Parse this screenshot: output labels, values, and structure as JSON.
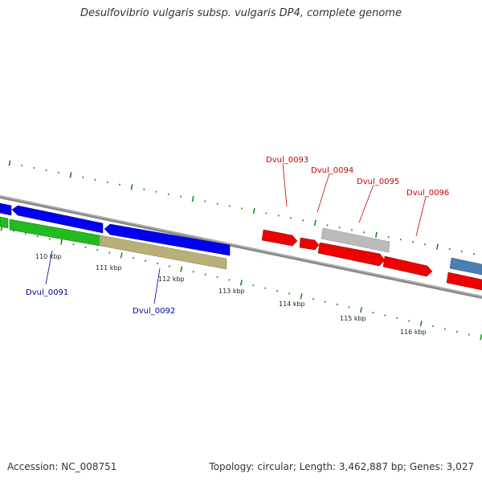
{
  "title": "Desulfovibrio vulgaris subsp. vulgaris DP4, complete genome",
  "footer": {
    "accession": "Accession: NC_008751",
    "topology": "Topology: circular; Length: 3,462,887 bp; Genes: 3,027"
  },
  "colors": {
    "backbone": "#888888",
    "tick": "#1e8a1e",
    "label_blue": "#0000aa",
    "label_red": "#cc0000",
    "gene_blue": "#0000ee",
    "gene_green": "#22bb22",
    "gene_olive": "#b8b078",
    "gene_red": "#ee0000",
    "gene_gray": "#bbbbbb",
    "gene_steel": "#4a7fb5"
  },
  "scale_ticks": [
    "110 kbp",
    "111 kbp",
    "112 kbp",
    "113 kbp",
    "114 kbp",
    "115 kbp",
    "116 kbp"
  ],
  "gene_labels": [
    {
      "name": "Dvul_0091",
      "color": "blue"
    },
    {
      "name": "Dvul_0092",
      "color": "blue"
    },
    {
      "name": "Dvul_0093",
      "color": "red"
    },
    {
      "name": "Dvul_0094",
      "color": "red"
    },
    {
      "name": "Dvul_0095",
      "color": "red"
    },
    {
      "name": "Dvul_0096",
      "color": "red"
    }
  ]
}
